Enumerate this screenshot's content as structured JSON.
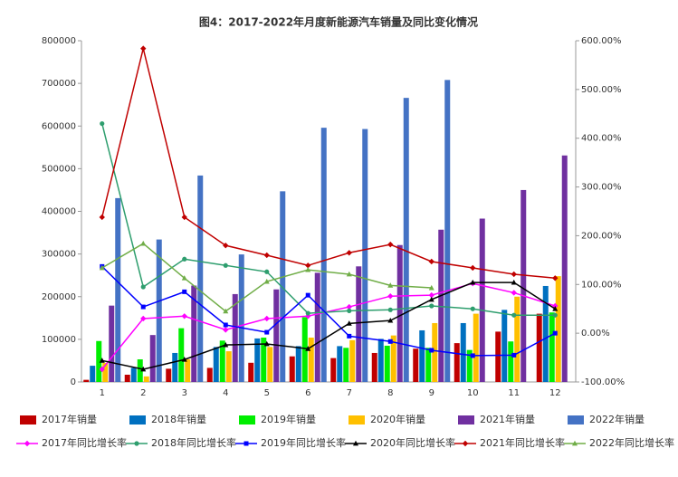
{
  "chart_data": {
    "type": "bar",
    "title": "图4：2017-2022年月度新能源汽车销量及同比变化情况",
    "categories": [
      "1",
      "2",
      "3",
      "4",
      "5",
      "6",
      "7",
      "8",
      "9",
      "10",
      "11",
      "12"
    ],
    "ylim": [
      0,
      800000
    ],
    "yticks": [
      0,
      100000,
      200000,
      300000,
      400000,
      500000,
      600000,
      700000,
      800000
    ],
    "y2lim": [
      -100,
      600
    ],
    "y2ticks": [
      {
        "value": -100,
        "label": "-100.00%"
      },
      {
        "value": 0,
        "label": "0.00%"
      },
      {
        "value": 100,
        "label": "100.00%"
      },
      {
        "value": 200,
        "label": "200.00%"
      },
      {
        "value": 300,
        "label": "300.00%"
      },
      {
        "value": 400,
        "label": "400.00%"
      },
      {
        "value": 500,
        "label": "500.00%"
      },
      {
        "value": 600,
        "label": "600.00%"
      }
    ],
    "series": [
      {
        "name": "2017年销量",
        "type": "bar",
        "color": "#c00000",
        "values": [
          5000,
          17000,
          31000,
          33000,
          45000,
          60000,
          56000,
          68000,
          78000,
          91000,
          118000,
          160000
        ]
      },
      {
        "name": "2018年销量",
        "type": "bar",
        "color": "#0070c0",
        "values": [
          38000,
          33000,
          68000,
          82000,
          102000,
          84000,
          84000,
          101000,
          121000,
          138000,
          169000,
          225000
        ]
      },
      {
        "name": "2019年销量",
        "type": "bar",
        "color": "#00ee00",
        "values": [
          96000,
          53000,
          126000,
          97000,
          104000,
          152000,
          80000,
          85000,
          80000,
          75000,
          95000,
          163000
        ]
      },
      {
        "name": "2020年销量",
        "type": "bar",
        "color": "#ffc000",
        "values": [
          45000,
          13000,
          53000,
          72000,
          82000,
          104000,
          98000,
          109000,
          138000,
          160000,
          200000,
          248000
        ]
      },
      {
        "name": "2021年销量",
        "type": "bar",
        "color": "#7030a0",
        "values": [
          179000,
          110000,
          226000,
          206000,
          217000,
          256000,
          271000,
          321000,
          357000,
          383000,
          450000,
          531000
        ]
      },
      {
        "name": "2022年销量",
        "type": "bar",
        "color": "#4472c4",
        "values": [
          431000,
          334000,
          484000,
          299000,
          447000,
          596000,
          593000,
          666000,
          708000,
          null,
          null,
          null
        ]
      },
      {
        "name": "2017年同比增长率",
        "type": "line",
        "axis": "y2",
        "marker": "diamond",
        "color": "#ff00ff",
        "values": [
          -74,
          30,
          35,
          7,
          30,
          35,
          54,
          76,
          78,
          102,
          83,
          56
        ]
      },
      {
        "name": "2018年同比增长率",
        "type": "line",
        "axis": "y2",
        "marker": "circle",
        "color": "#2e9e6e",
        "values": [
          430,
          95,
          152,
          139,
          126,
          41,
          46,
          48,
          56,
          50,
          37,
          37
        ]
      },
      {
        "name": "2019年同比增长率",
        "type": "line",
        "axis": "y2",
        "marker": "square",
        "color": "#0000ff",
        "values": [
          137,
          54,
          85,
          17,
          2,
          78,
          -6,
          -17,
          -35,
          -46,
          -45,
          0
        ]
      },
      {
        "name": "2020年同比增长率",
        "type": "line",
        "axis": "y2",
        "marker": "triangle",
        "color": "#000000",
        "values": [
          -56,
          -74,
          -54,
          -24,
          -22,
          -32,
          20,
          26,
          69,
          104,
          104,
          50
        ]
      },
      {
        "name": "2021年同比增长率",
        "type": "line",
        "axis": "y2",
        "marker": "diamond",
        "color": "#c00000",
        "values": [
          238,
          584,
          238,
          180,
          160,
          139,
          165,
          182,
          147,
          134,
          121,
          113
        ]
      },
      {
        "name": "2022年同比增长率",
        "type": "line",
        "axis": "y2",
        "marker": "triangle",
        "color": "#70ad47",
        "values": [
          134,
          184,
          113,
          45,
          106,
          130,
          121,
          98,
          93,
          null,
          null,
          null
        ]
      }
    ]
  }
}
